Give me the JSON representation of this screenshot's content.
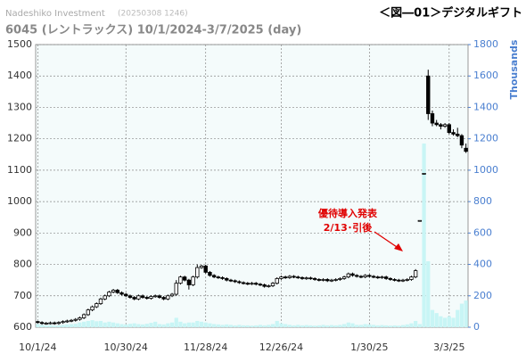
{
  "chart_data": {
    "type": "candlestick",
    "source_label": "Nadeshiko Investment",
    "timestamp": "(20250308 1246)",
    "title": "6045 (レントラックス) 10/1/2024-3/7/2025 (day)",
    "figure_label": "＜図―01＞デジタルギフト",
    "y2label": "Thousands",
    "annotation": [
      "優待導入発表",
      "2/13･引後"
    ],
    "categories": [
      "10/1/24",
      null,
      null,
      null,
      null,
      null,
      null,
      null,
      null,
      null,
      null,
      null,
      null,
      null,
      null,
      null,
      null,
      null,
      null,
      null,
      null,
      "10/30/24",
      null,
      null,
      null,
      null,
      null,
      null,
      null,
      null,
      null,
      null,
      null,
      null,
      null,
      null,
      null,
      null,
      null,
      null,
      "11/28/24",
      null,
      null,
      null,
      null,
      null,
      null,
      null,
      null,
      null,
      null,
      null,
      null,
      null,
      null,
      null,
      null,
      null,
      "12/26/24",
      null,
      null,
      null,
      null,
      null,
      null,
      null,
      null,
      null,
      null,
      null,
      null,
      null,
      null,
      null,
      null,
      null,
      null,
      null,
      null,
      "1/30/25",
      null,
      null,
      null,
      null,
      null,
      null,
      null,
      null,
      null,
      null,
      null,
      null,
      null,
      null,
      null,
      null,
      null,
      null,
      "3/3/25",
      null,
      null,
      null,
      null
    ],
    "ohlc": [
      [
        618,
        620,
        612,
        615
      ],
      [
        615,
        619,
        608,
        612
      ],
      [
        612,
        617,
        608,
        613
      ],
      [
        613,
        618,
        609,
        614
      ],
      [
        614,
        618,
        608,
        612
      ],
      [
        612,
        619,
        608,
        615
      ],
      [
        615,
        622,
        611,
        618
      ],
      [
        618,
        624,
        614,
        620
      ],
      [
        620,
        626,
        616,
        622
      ],
      [
        622,
        629,
        618,
        625
      ],
      [
        625,
        634,
        621,
        630
      ],
      [
        630,
        644,
        626,
        640
      ],
      [
        640,
        659,
        636,
        655
      ],
      [
        655,
        669,
        651,
        665
      ],
      [
        665,
        679,
        661,
        675
      ],
      [
        675,
        694,
        671,
        690
      ],
      [
        690,
        704,
        686,
        700
      ],
      [
        700,
        716,
        696,
        712
      ],
      [
        712,
        722,
        708,
        718
      ],
      [
        718,
        722,
        706,
        710
      ],
      [
        710,
        714,
        701,
        705
      ],
      [
        705,
        709,
        696,
        700
      ],
      [
        700,
        704,
        691,
        695
      ],
      [
        695,
        699,
        686,
        690
      ],
      [
        690,
        704,
        686,
        700
      ],
      [
        700,
        704,
        691,
        695
      ],
      [
        695,
        699,
        688,
        692
      ],
      [
        692,
        702,
        688,
        698
      ],
      [
        698,
        704,
        694,
        700
      ],
      [
        700,
        704,
        691,
        695
      ],
      [
        695,
        699,
        686,
        690
      ],
      [
        690,
        704,
        686,
        700
      ],
      [
        700,
        709,
        696,
        705
      ],
      [
        705,
        750,
        700,
        740
      ],
      [
        740,
        764,
        736,
        760
      ],
      [
        760,
        764,
        746,
        750
      ],
      [
        750,
        754,
        720,
        735
      ],
      [
        735,
        764,
        731,
        760
      ],
      [
        760,
        800,
        755,
        790
      ],
      [
        790,
        799,
        786,
        795
      ],
      [
        795,
        799,
        771,
        775
      ],
      [
        775,
        779,
        761,
        765
      ],
      [
        765,
        769,
        756,
        760
      ],
      [
        760,
        764,
        754,
        758
      ],
      [
        758,
        762,
        751,
        755
      ],
      [
        755,
        759,
        746,
        750
      ],
      [
        750,
        754,
        744,
        748
      ],
      [
        748,
        752,
        741,
        745
      ],
      [
        745,
        749,
        738,
        742
      ],
      [
        742,
        746,
        736,
        740
      ],
      [
        740,
        744,
        734,
        738
      ],
      [
        738,
        744,
        734,
        740
      ],
      [
        740,
        744,
        733,
        737
      ],
      [
        737,
        741,
        731,
        735
      ],
      [
        735,
        739,
        726,
        730
      ],
      [
        730,
        736,
        726,
        732
      ],
      [
        732,
        744,
        728,
        740
      ],
      [
        740,
        759,
        736,
        755
      ],
      [
        755,
        764,
        751,
        760
      ],
      [
        760,
        764,
        754,
        758
      ],
      [
        758,
        766,
        754,
        762
      ],
      [
        762,
        766,
        756,
        760
      ],
      [
        760,
        764,
        754,
        758
      ],
      [
        758,
        762,
        751,
        755
      ],
      [
        755,
        761,
        751,
        757
      ],
      [
        757,
        761,
        751,
        755
      ],
      [
        755,
        759,
        748,
        752
      ],
      [
        752,
        756,
        746,
        750
      ],
      [
        750,
        756,
        746,
        752
      ],
      [
        752,
        756,
        744,
        748
      ],
      [
        748,
        754,
        744,
        750
      ],
      [
        750,
        756,
        746,
        752
      ],
      [
        752,
        759,
        748,
        755
      ],
      [
        755,
        764,
        751,
        760
      ],
      [
        760,
        774,
        756,
        770
      ],
      [
        770,
        774,
        761,
        765
      ],
      [
        765,
        769,
        758,
        762
      ],
      [
        762,
        766,
        756,
        760
      ],
      [
        760,
        769,
        756,
        765
      ],
      [
        765,
        769,
        758,
        762
      ],
      [
        762,
        766,
        756,
        760
      ],
      [
        760,
        764,
        754,
        758
      ],
      [
        758,
        764,
        754,
        760
      ],
      [
        760,
        764,
        751,
        755
      ],
      [
        755,
        759,
        748,
        752
      ],
      [
        752,
        756,
        746,
        750
      ],
      [
        750,
        754,
        744,
        748
      ],
      [
        748,
        754,
        744,
        750
      ],
      [
        750,
        756,
        746,
        752
      ],
      [
        752,
        764,
        748,
        760
      ],
      [
        760,
        785,
        756,
        780
      ],
      [
        940,
        940,
        940,
        940
      ],
      [
        1090,
        1090,
        1090,
        1090
      ],
      [
        1400,
        1420,
        1260,
        1280
      ],
      [
        1280,
        1290,
        1240,
        1250
      ],
      [
        1250,
        1260,
        1240,
        1245
      ],
      [
        1245,
        1250,
        1230,
        1240
      ],
      [
        1240,
        1250,
        1235,
        1245
      ],
      [
        1245,
        1250,
        1215,
        1220
      ],
      [
        1220,
        1230,
        1210,
        1215
      ],
      [
        1215,
        1235,
        1205,
        1210
      ],
      [
        1210,
        1215,
        1170,
        1180
      ],
      [
        1170,
        1185,
        1155,
        1160
      ]
    ],
    "volume": [
      20,
      15,
      12,
      14,
      10,
      12,
      15,
      18,
      20,
      22,
      30,
      35,
      40,
      45,
      38,
      40,
      30,
      35,
      30,
      25,
      20,
      18,
      22,
      25,
      20,
      18,
      22,
      28,
      35,
      20,
      18,
      25,
      30,
      60,
      35,
      25,
      30,
      30,
      40,
      35,
      30,
      25,
      20,
      18,
      15,
      18,
      15,
      12,
      15,
      12,
      12,
      10,
      12,
      15,
      12,
      15,
      20,
      40,
      25,
      20,
      15,
      12,
      15,
      12,
      14,
      12,
      10,
      12,
      15,
      12,
      14,
      12,
      15,
      20,
      30,
      25,
      15,
      15,
      20,
      18,
      15,
      12,
      14,
      12,
      10,
      12,
      10,
      14,
      18,
      25,
      40,
      20,
      1170,
      420,
      110,
      90,
      70,
      60,
      70,
      60,
      110,
      150,
      170
    ],
    "volume_color": "#c8f5f5",
    "ylim": [
      600,
      1500
    ],
    "yticks": [
      600,
      700,
      800,
      900,
      1000,
      1100,
      1200,
      1300,
      1400,
      1500
    ],
    "y2lim": [
      0,
      1800
    ],
    "y2ticks": [
      0,
      200,
      400,
      600,
      800,
      1000,
      1200,
      1400,
      1600,
      1800
    ],
    "grid": true
  }
}
